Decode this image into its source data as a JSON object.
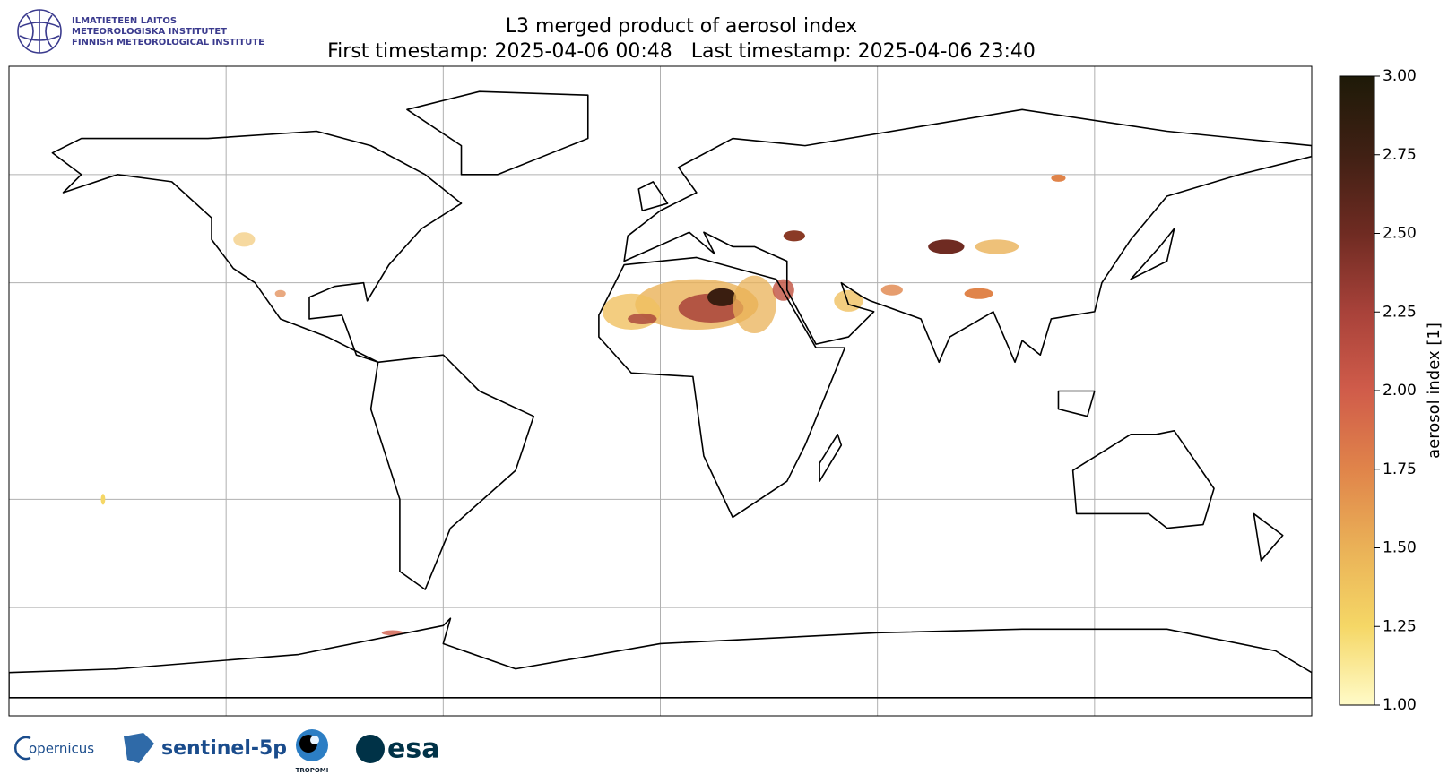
{
  "chart_data": {
    "type": "map",
    "title": "L3 merged product of aerosol index",
    "subtitle": "First timestamp: 2025-04-06 00:48   Last timestamp: 2025-04-06 23:40",
    "colorbar_label": "aerosol index [1]",
    "clim": [
      1,
      3
    ],
    "cticks": [
      {
        "value": 1,
        "label": "1.00"
      },
      {
        "value": 1.25,
        "label": "1.25"
      },
      {
        "value": 1.5,
        "label": "1.50"
      },
      {
        "value": 1.75,
        "label": "1.75"
      },
      {
        "value": 2,
        "label": "2.00"
      },
      {
        "value": 2.25,
        "label": "2.25"
      },
      {
        "value": 2.5,
        "label": "2.50"
      },
      {
        "value": 2.75,
        "label": "2.75"
      },
      {
        "value": 3,
        "label": "3.00"
      }
    ]
  },
  "header": {
    "institute": [
      "ILMATIETEEN LAITOS",
      "METEOROLOGISKA INSTITUTET",
      "FINNISH METEOROLOGICAL INSTITUTE"
    ]
  },
  "footer": {
    "logos": [
      "opernicus",
      "sentinel-5p",
      "TROPOMI",
      "esa"
    ]
  }
}
